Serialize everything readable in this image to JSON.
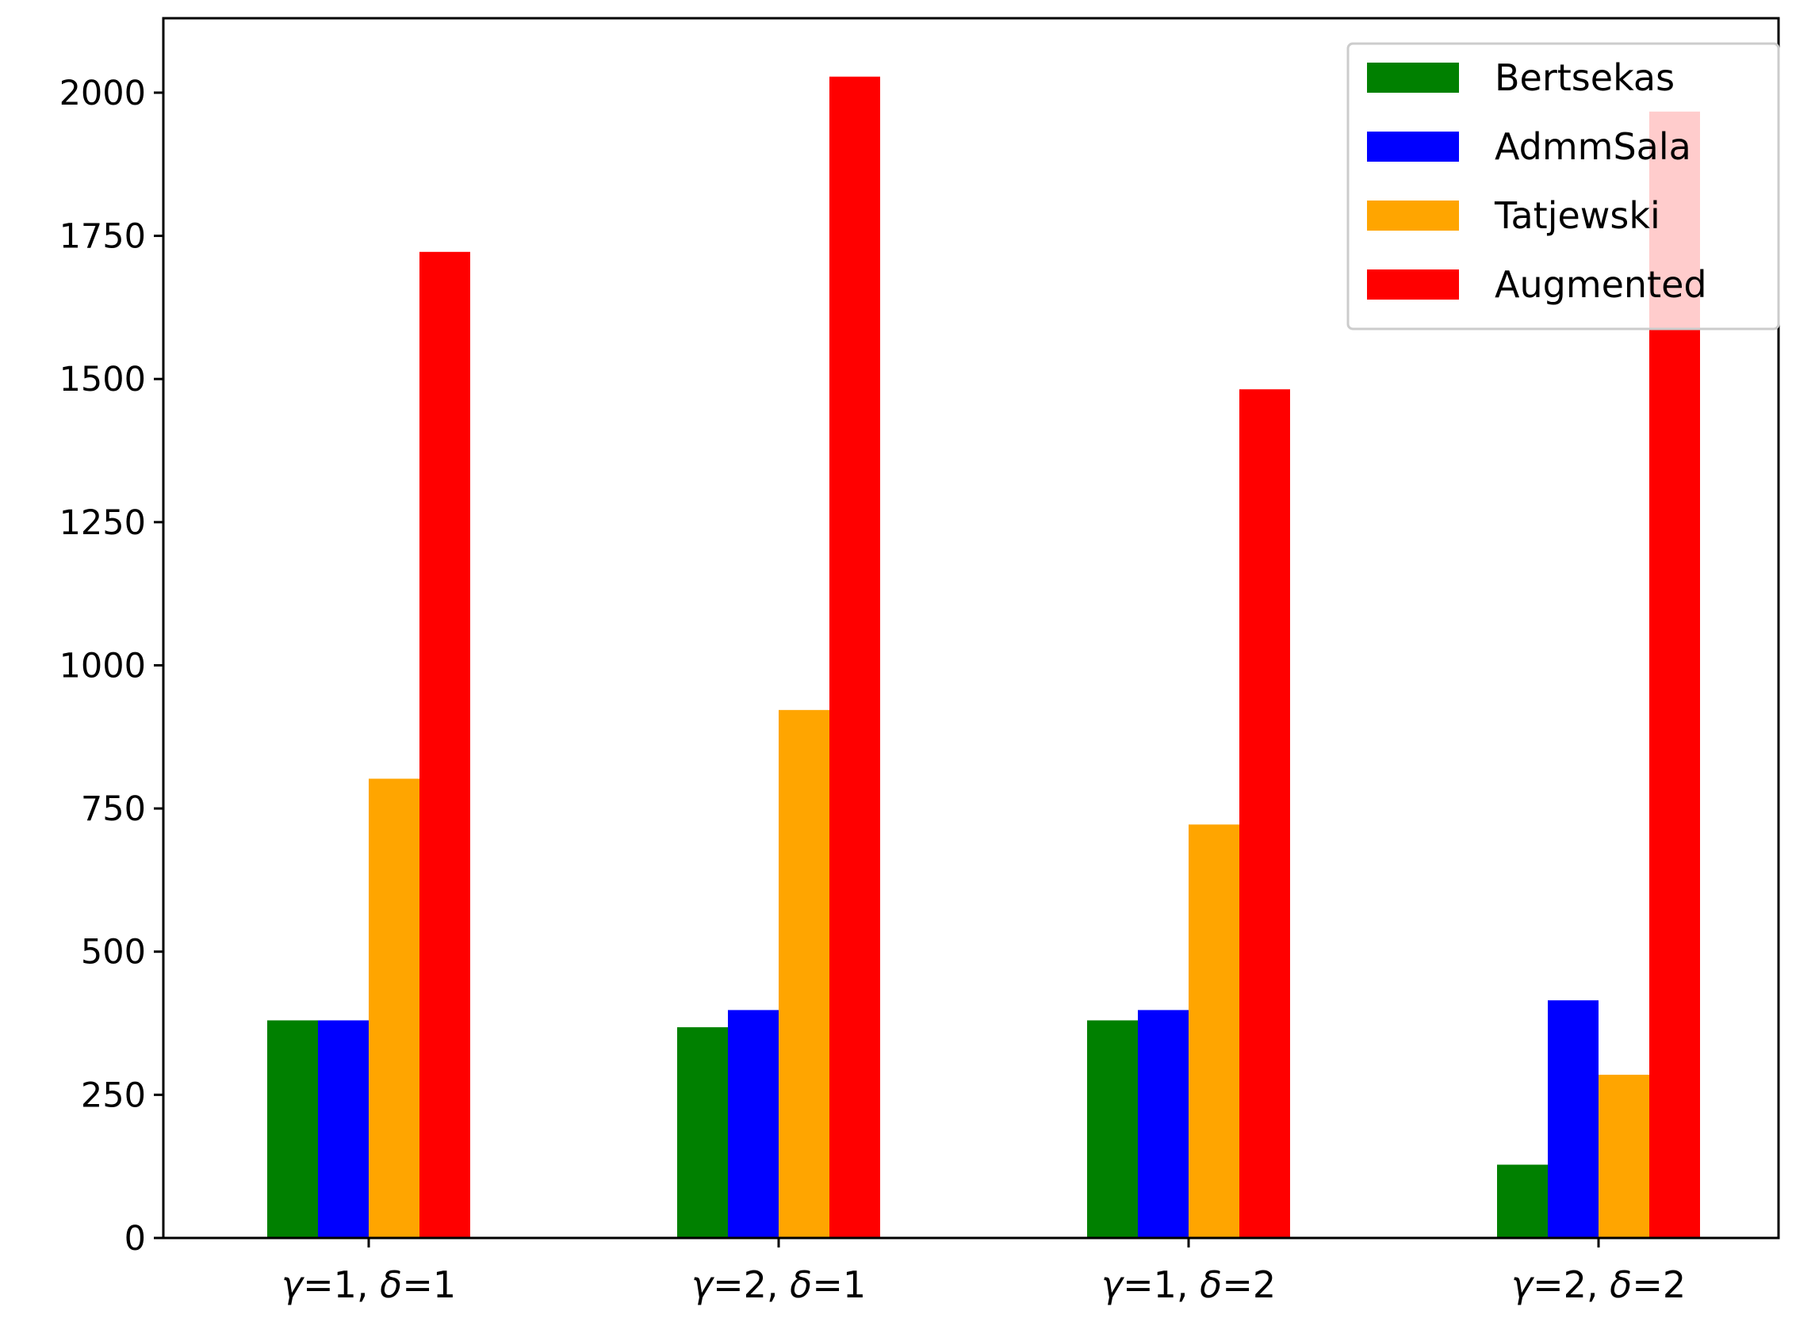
{
  "chart_data": {
    "type": "bar",
    "categories": [
      "γ=1, δ=1",
      "γ=2, δ=1",
      "γ=1, δ=2",
      "γ=2, δ=2"
    ],
    "category_parts": [
      {
        "g": "1",
        "d": "1"
      },
      {
        "g": "2",
        "d": "1"
      },
      {
        "g": "1",
        "d": "2"
      },
      {
        "g": "2",
        "d": "2"
      }
    ],
    "series": [
      {
        "name": "Bertsekas",
        "color": "#008000",
        "values": [
          380,
          368,
          380,
          128
        ]
      },
      {
        "name": "AdmmSala",
        "color": "#0000ff",
        "values": [
          380,
          398,
          398,
          415
        ]
      },
      {
        "name": "Tatjewski",
        "color": "#ffa500",
        "values": [
          802,
          922,
          722,
          285
        ]
      },
      {
        "name": "Augmented",
        "color": "#ff0000",
        "values": [
          1722,
          2028,
          1482,
          1967
        ]
      }
    ],
    "yticks": [
      0,
      250,
      500,
      750,
      1000,
      1250,
      1500,
      1750,
      2000
    ],
    "ylim": [
      0,
      2130
    ],
    "title": "",
    "xlabel": "",
    "ylabel": "",
    "legend_position": "top-right",
    "grid": false
  }
}
